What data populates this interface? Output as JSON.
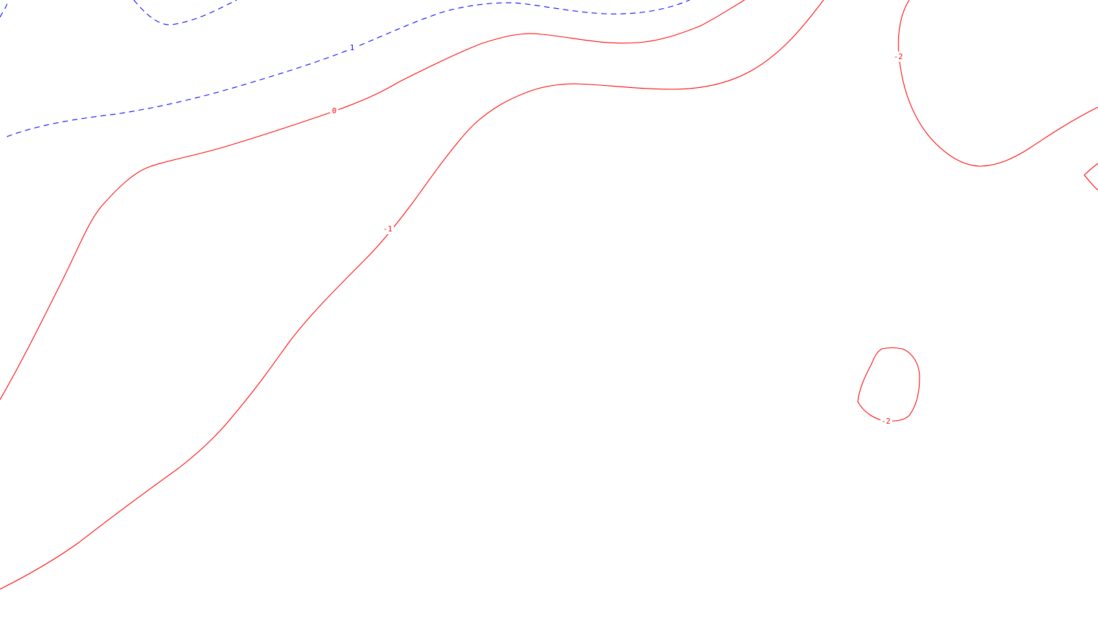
{
  "colors": {
    "positive": "#ff0000",
    "negative_dashed": "#0000ff",
    "background": "#ffffff"
  },
  "contours": [
    {
      "id": "blue-top-left",
      "level": "1",
      "style": "dashed",
      "color_key": "negative_dashed",
      "label": ""
    },
    {
      "id": "blue-main",
      "level": "1",
      "style": "dashed",
      "color_key": "negative_dashed",
      "label": "1"
    },
    {
      "id": "red-zero",
      "level": "0",
      "style": "solid",
      "color_key": "positive",
      "label": "0"
    },
    {
      "id": "red-minus-one",
      "level": "-1",
      "style": "solid",
      "color_key": "positive",
      "label": "-1"
    },
    {
      "id": "red-minus-two-right",
      "level": "-2",
      "style": "solid",
      "color_key": "positive",
      "label": "-2"
    },
    {
      "id": "red-minus-two-loop",
      "level": "-2",
      "style": "solid",
      "color_key": "positive",
      "label": "-2"
    },
    {
      "id": "red-edge-stub",
      "level": "",
      "style": "solid",
      "color_key": "positive",
      "label": ""
    }
  ]
}
